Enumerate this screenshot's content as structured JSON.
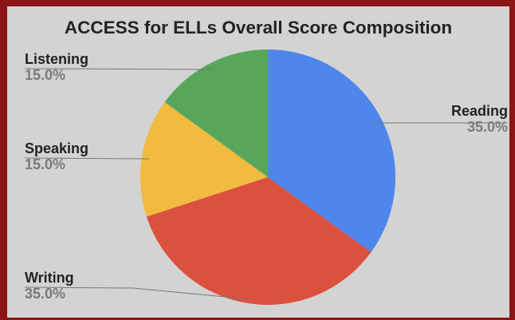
{
  "chart_data": {
    "type": "pie",
    "title": "ACCESS for ELLs Overall Score Composition",
    "start_angle_deg": 0,
    "slices": [
      {
        "label": "Reading",
        "value": 35.0,
        "display": "35.0%",
        "color": "#4e86ec"
      },
      {
        "label": "Writing",
        "value": 35.0,
        "display": "35.0%",
        "color": "#dc503e"
      },
      {
        "label": "Speaking",
        "value": 15.0,
        "display": "15.0%",
        "color": "#f1bb3f"
      },
      {
        "label": "Listening",
        "value": 15.0,
        "display": "15.0%",
        "color": "#58a65c"
      }
    ]
  }
}
